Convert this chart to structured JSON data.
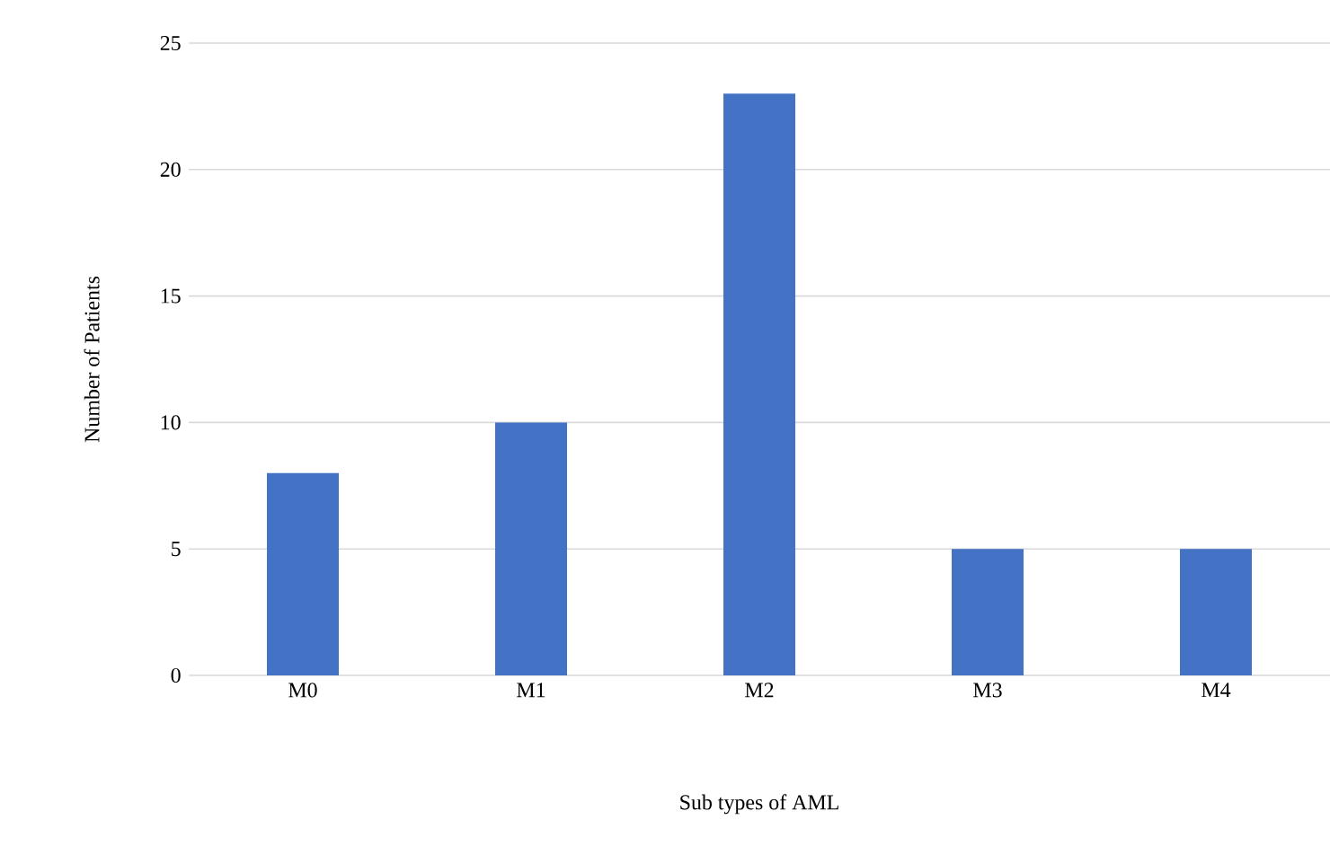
{
  "chart_data": {
    "type": "bar",
    "xlabel": "Sub types of AML",
    "ylabel": "Number of Patients",
    "categories": [
      "M0",
      "M1",
      "M2",
      "M3",
      "M4"
    ],
    "values": [
      8,
      10,
      23,
      5,
      5
    ],
    "color": "#4472c4",
    "ylim": [
      0,
      25
    ],
    "yticks": [
      0,
      5,
      10,
      15,
      20,
      25
    ],
    "grid": "y"
  }
}
